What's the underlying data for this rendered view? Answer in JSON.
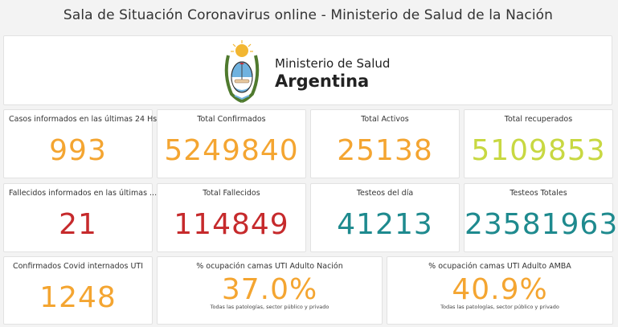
{
  "header": {
    "title": "Sala de Situación Coronavirus online - Ministerio de Salud de la Nación"
  },
  "logo": {
    "line1": "Ministerio de Salud",
    "line2": "Argentina"
  },
  "colors": {
    "orange": "#f4a531",
    "lime": "#c8d842",
    "red": "#c62a2c",
    "teal": "#1e8a8e"
  },
  "row1": [
    {
      "label": "Casos informados en las últimas 24 Hs",
      "value": "993"
    },
    {
      "label": "Total Confirmados",
      "value": "5249840"
    },
    {
      "label": "Total Activos",
      "value": "25138"
    },
    {
      "label": "Total recuperados",
      "value": "5109853"
    }
  ],
  "row2": [
    {
      "label": "Fallecidos informados en las últimas ...",
      "value": "21"
    },
    {
      "label": "Total Fallecidos",
      "value": "114849"
    },
    {
      "label": "Testeos del día",
      "value": "41213"
    },
    {
      "label": "Testeos Totales",
      "value": "23581963"
    }
  ],
  "row3": [
    {
      "label": "Confirmados Covid internados UTI",
      "value": "1248"
    },
    {
      "label": "% ocupación camas UTI Adulto Nación",
      "value": "37.0%",
      "sub": "Todas las patologías, sector público y privado"
    },
    {
      "label": "% ocupación camas UTI Adulto AMBA",
      "value": "40.9%",
      "sub": "Todas las patologías, sector público y privado"
    }
  ]
}
